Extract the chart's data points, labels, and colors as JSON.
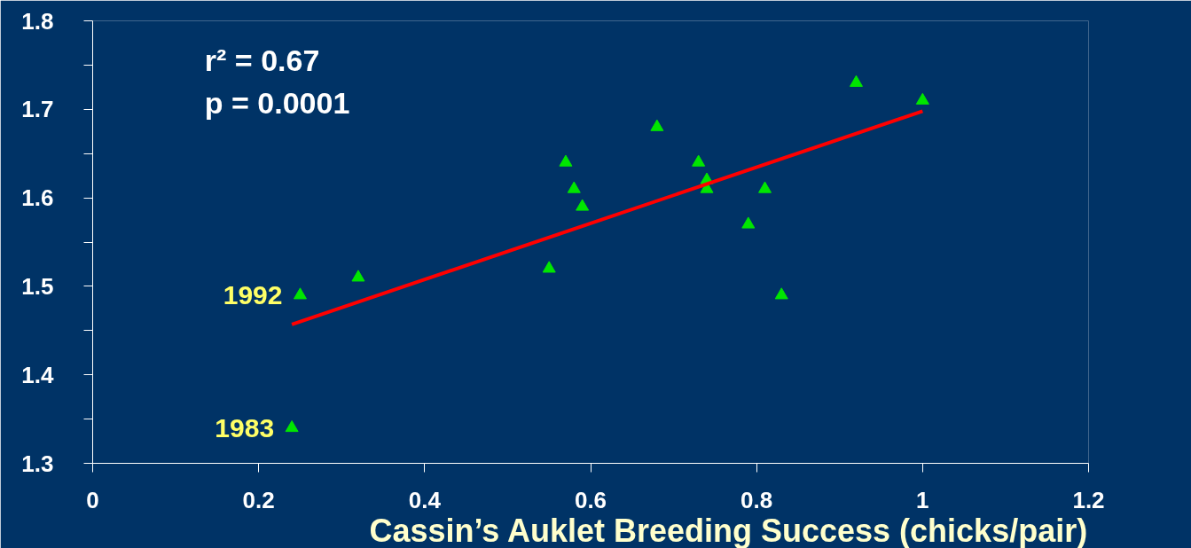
{
  "chart_data": {
    "type": "scatter",
    "xlabel": "Cassin’s Auklet Breeding Success (chicks/pair)",
    "xlim": [
      0,
      1.2
    ],
    "xticks": [
      0,
      0.2,
      0.4,
      0.6,
      0.8,
      1,
      1.2
    ],
    "ylim": [
      1.3,
      1.8
    ],
    "yticks": [
      1.3,
      {
        "value": 1.35,
        "label": null
      },
      1.4,
      {
        "value": 1.45,
        "label": null
      },
      1.5,
      {
        "value": 1.55,
        "label": null
      },
      1.6,
      {
        "value": 1.65,
        "label": null
      },
      1.7,
      {
        "value": 1.75,
        "label": null
      },
      1.8
    ],
    "grid": false,
    "series": [
      {
        "marker": "triangle",
        "color": "#00e600",
        "x": [
          0.24,
          0.25,
          0.32,
          0.55,
          0.57,
          0.58,
          0.59,
          0.68,
          0.73,
          0.74,
          0.74,
          0.79,
          0.81,
          0.83,
          0.92,
          1.0
        ],
        "values": [
          1.34,
          1.49,
          1.51,
          1.52,
          1.64,
          1.61,
          1.59,
          1.68,
          1.64,
          1.62,
          1.61,
          1.57,
          1.61,
          1.49,
          1.73,
          1.71
        ]
      },
      {
        "type": "line",
        "color": "#ff0000",
        "x": [
          0.24,
          1.0
        ],
        "values": [
          1.457,
          1.698
        ],
        "line_style": "solid"
      }
    ],
    "annotations": [
      "r² = 0.67",
      "p = 0.0001",
      {
        "text": "1992",
        "x": 0.25,
        "y": 1.49
      },
      {
        "text": "1983",
        "x": 0.24,
        "y": 1.34
      }
    ]
  }
}
